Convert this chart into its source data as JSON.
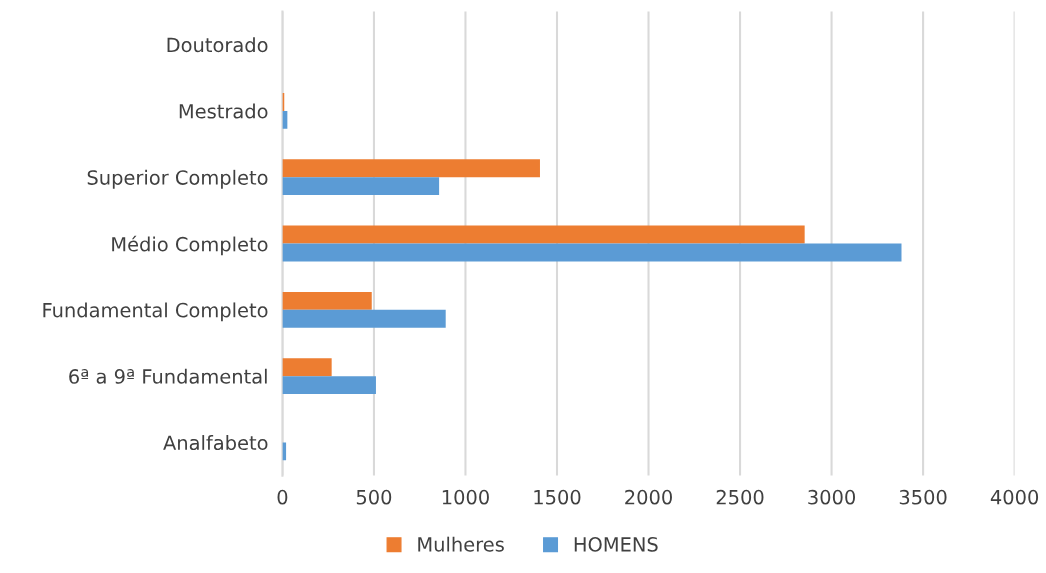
{
  "chart_data": {
    "type": "bar",
    "orientation": "horizontal",
    "categories": [
      "Doutorado",
      "Mestrado",
      "Superior Completo",
      "Médio Completo",
      "Fundamental Completo",
      "6ª a 9ª Fundamental",
      "Analfabeto"
    ],
    "series": [
      {
        "name": "Mulheres",
        "color": "#ed7d31",
        "values": [
          0,
          10,
          1407,
          2853,
          488,
          269,
          0
        ]
      },
      {
        "name": "HOMENS",
        "color": "#5b9bd5",
        "values": [
          0,
          27,
          856,
          3382,
          892,
          511,
          20
        ]
      }
    ],
    "xlim": [
      0,
      4000
    ],
    "xticks": [
      0,
      500,
      1000,
      1500,
      2000,
      2500,
      3000,
      3500,
      4000
    ],
    "grid": "x",
    "legend": "bottom"
  }
}
